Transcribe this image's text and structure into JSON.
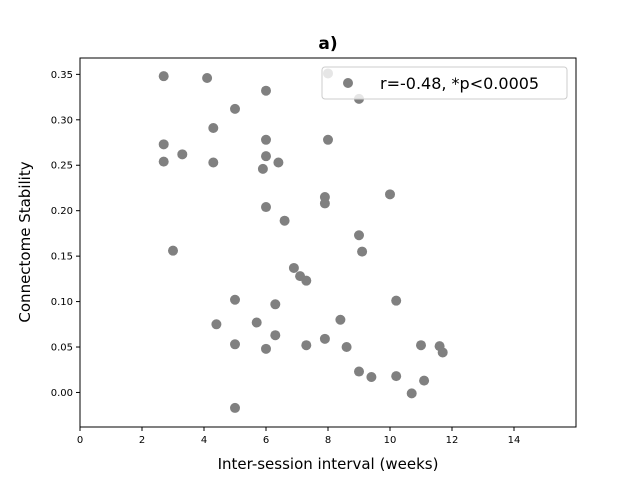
{
  "chart_data": {
    "type": "scatter",
    "title": "a)",
    "xlabel": "Inter-session interval (weeks)",
    "ylabel": "Connectome Stability",
    "xlim": [
      0,
      16
    ],
    "ylim": [
      -0.038,
      0.368
    ],
    "xticks": [
      "0",
      "2",
      "4",
      "6",
      "8",
      "10",
      "12",
      "14"
    ],
    "yticks": [
      "0.00",
      "0.05",
      "0.10",
      "0.15",
      "0.20",
      "0.25",
      "0.30",
      "0.35"
    ],
    "grid": false,
    "legend_position": "upper-right",
    "series": [
      {
        "name": "r=-0.48, *p<0.0005",
        "color": "#808080",
        "points": [
          {
            "x": 2.7,
            "y": 0.348
          },
          {
            "x": 4.1,
            "y": 0.346
          },
          {
            "x": 8.0,
            "y": 0.351
          },
          {
            "x": 6.0,
            "y": 0.332
          },
          {
            "x": 9.0,
            "y": 0.323
          },
          {
            "x": 5.0,
            "y": 0.312
          },
          {
            "x": 4.3,
            "y": 0.291
          },
          {
            "x": 6.0,
            "y": 0.278
          },
          {
            "x": 8.0,
            "y": 0.278
          },
          {
            "x": 2.7,
            "y": 0.273
          },
          {
            "x": 3.3,
            "y": 0.262
          },
          {
            "x": 6.0,
            "y": 0.26
          },
          {
            "x": 2.7,
            "y": 0.254
          },
          {
            "x": 4.3,
            "y": 0.253
          },
          {
            "x": 6.4,
            "y": 0.253
          },
          {
            "x": 5.9,
            "y": 0.246
          },
          {
            "x": 10.0,
            "y": 0.218
          },
          {
            "x": 7.9,
            "y": 0.215
          },
          {
            "x": 7.9,
            "y": 0.208
          },
          {
            "x": 6.0,
            "y": 0.204
          },
          {
            "x": 6.6,
            "y": 0.189
          },
          {
            "x": 9.0,
            "y": 0.173
          },
          {
            "x": 3.0,
            "y": 0.156
          },
          {
            "x": 9.1,
            "y": 0.155
          },
          {
            "x": 6.9,
            "y": 0.137
          },
          {
            "x": 7.1,
            "y": 0.128
          },
          {
            "x": 7.3,
            "y": 0.123
          },
          {
            "x": 5.0,
            "y": 0.102
          },
          {
            "x": 10.2,
            "y": 0.101
          },
          {
            "x": 6.3,
            "y": 0.097
          },
          {
            "x": 8.4,
            "y": 0.08
          },
          {
            "x": 5.7,
            "y": 0.077
          },
          {
            "x": 4.4,
            "y": 0.075
          },
          {
            "x": 6.3,
            "y": 0.063
          },
          {
            "x": 7.9,
            "y": 0.059
          },
          {
            "x": 5.0,
            "y": 0.053
          },
          {
            "x": 7.3,
            "y": 0.052
          },
          {
            "x": 11.0,
            "y": 0.052
          },
          {
            "x": 11.6,
            "y": 0.051
          },
          {
            "x": 8.6,
            "y": 0.05
          },
          {
            "x": 6.0,
            "y": 0.048
          },
          {
            "x": 11.7,
            "y": 0.044
          },
          {
            "x": 9.0,
            "y": 0.023
          },
          {
            "x": 9.4,
            "y": 0.017
          },
          {
            "x": 10.2,
            "y": 0.018
          },
          {
            "x": 11.1,
            "y": 0.013
          },
          {
            "x": 10.7,
            "y": -0.001
          },
          {
            "x": 5.0,
            "y": -0.017
          }
        ]
      }
    ]
  }
}
